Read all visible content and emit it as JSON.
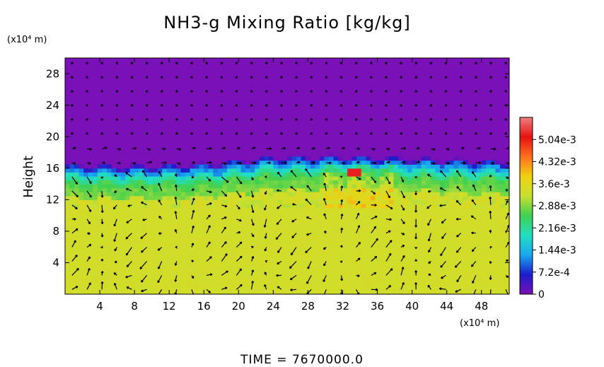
{
  "chart_data": {
    "type": "heatmap",
    "title": "NH3-g Mixing Ratio [kg/kg]",
    "ylabel": "Height",
    "x_unit": "(x10⁴ m)",
    "y_unit": "(x10⁴ m)",
    "x_ticks": [
      4,
      8,
      12,
      16,
      20,
      24,
      28,
      32,
      36,
      40,
      44,
      48
    ],
    "y_ticks": [
      4,
      8,
      12,
      16,
      20,
      24,
      28
    ],
    "xlim": [
      0,
      51.2
    ],
    "ylim": [
      0,
      30
    ],
    "colorbar": {
      "range": [
        0,
        0.00576
      ],
      "tick_labels": [
        "0",
        "7.2e-4",
        "1.44e-3",
        "2.16e-3",
        "2.88e-3",
        "3.6e-3",
        "4.32e-3",
        "5.04e-3"
      ],
      "tick_values": [
        0,
        0.00072,
        0.00144,
        0.00216,
        0.00288,
        0.0036,
        0.00432,
        0.00504
      ],
      "colors": [
        "#7a10b8",
        "#1c1ccc",
        "#18a8f0",
        "#22e0c0",
        "#40d050",
        "#c8e030",
        "#f0d010",
        "#ff7020",
        "#e81010",
        "#f08080"
      ]
    },
    "profile": {
      "description_of": "approximate vertical structure",
      "surface_value": 0.0033,
      "layer_top_height": 16.5,
      "layer_top_variation": [
        [
          0,
          15.8
        ],
        [
          8,
          15.6
        ],
        [
          16,
          15.9
        ],
        [
          24,
          16.8
        ],
        [
          32,
          16.9
        ],
        [
          40,
          16.6
        ],
        [
          51.2,
          16.2
        ]
      ],
      "above_value": 0.0
    },
    "annotation_time_label": "TIME  =  7670000.0"
  },
  "colors": {
    "background": "#ffffff",
    "above_layer": "#7a10b8",
    "vector": "#000000"
  }
}
